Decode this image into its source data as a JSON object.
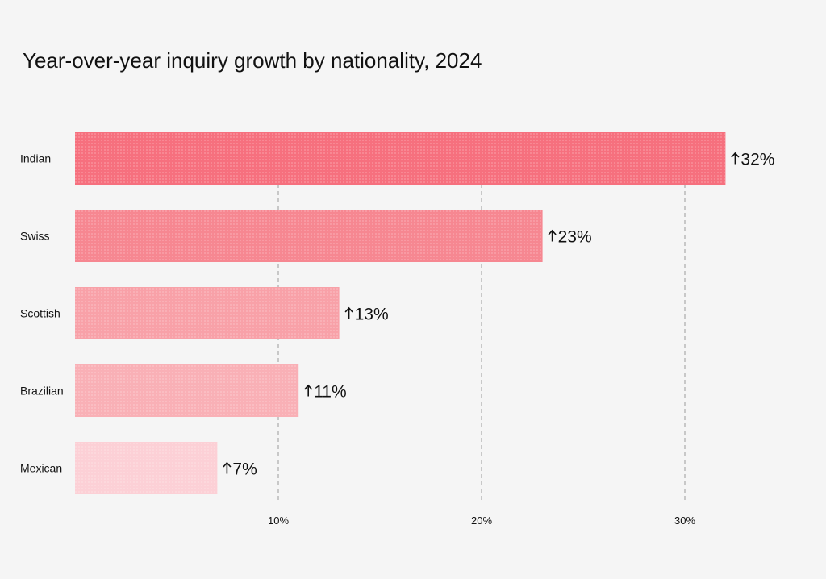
{
  "chart_data": {
    "type": "bar",
    "orientation": "horizontal",
    "title": "Year-over-year inquiry growth by nationality, 2024",
    "xlabel": "",
    "ylabel": "",
    "categories": [
      "Indian",
      "Swiss",
      "Scottish",
      "Brazilian",
      "Mexican"
    ],
    "values": [
      32,
      23,
      13,
      11,
      7
    ],
    "value_labels": [
      "32%",
      "23%",
      "13%",
      "11%",
      "7%"
    ],
    "value_prefix_symbol": "up-arrow",
    "xlim": [
      0,
      33
    ],
    "xticks": [
      10,
      20,
      30
    ],
    "xtick_labels": [
      "10%",
      "20%",
      "30%"
    ],
    "grid": "vertical dashed at ticks",
    "legend": "none",
    "bar_colors": [
      "#f6707e",
      "#f68791",
      "#f8a1a8",
      "#f9b0b6",
      "#fcd0d6"
    ]
  }
}
